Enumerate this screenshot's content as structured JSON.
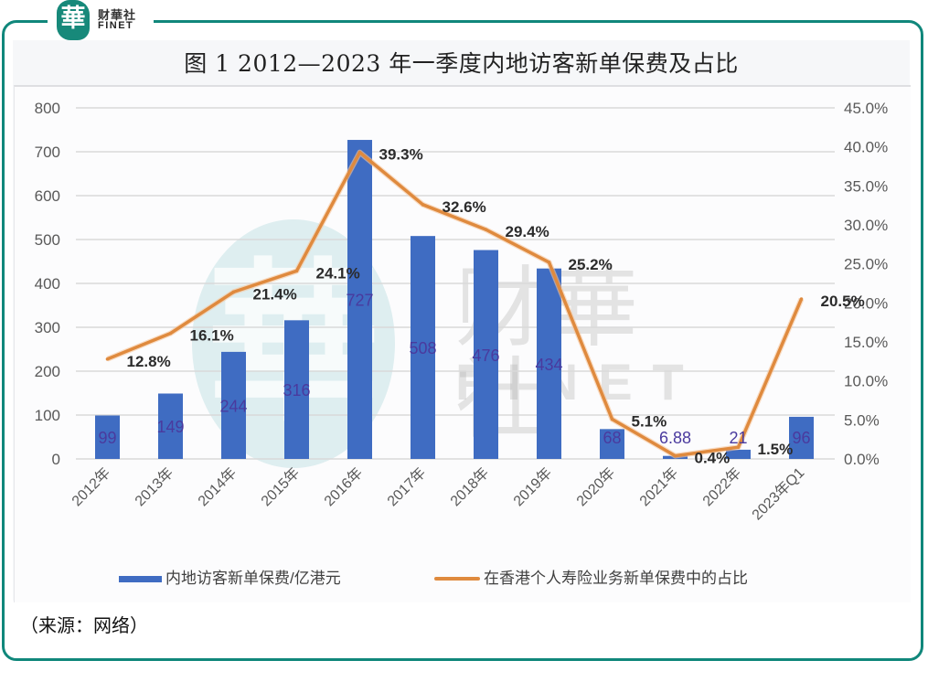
{
  "brand": {
    "logo_glyph": "華",
    "name": "财華社",
    "name_en": "FINET"
  },
  "watermark": {
    "glyph": "華",
    "name": "财華社",
    "name_en": "FINET"
  },
  "source_note": "（来源：网络）",
  "colors": {
    "frame": "#10877b",
    "bar": "#3f6cc2",
    "line": "#df8a3e",
    "bar_label": "#4a3a9e",
    "line_label": "#2b2b2b",
    "axis_text": "#595959",
    "grid": "#d9d9d9"
  },
  "chart_data": {
    "type": "bar",
    "title": "图 1 2012—2023 年一季度内地访客新单保费及占比",
    "xlabel": "",
    "ylabel": "",
    "categories": [
      "2012年",
      "2013年",
      "2014年",
      "2015年",
      "2016年",
      "2017年",
      "2018年",
      "2019年",
      "2020年",
      "2021年",
      "2022年",
      "2023年Q1"
    ],
    "y_left": {
      "min": 0,
      "max": 800,
      "ticks": [
        0,
        100,
        200,
        300,
        400,
        500,
        600,
        700,
        800
      ],
      "tick_labels": [
        "0",
        "100",
        "200",
        "300",
        "400",
        "500",
        "600",
        "700",
        "800"
      ]
    },
    "y_right": {
      "min": 0,
      "max": 45,
      "ticks": [
        0,
        5,
        10,
        15,
        20,
        25,
        30,
        35,
        40,
        45
      ],
      "tick_labels": [
        "0.0%",
        "5.0%",
        "10.0%",
        "15.0%",
        "20.0%",
        "25.0%",
        "30.0%",
        "35.0%",
        "40.0%",
        "45.0%"
      ]
    },
    "grid": true,
    "legend_position": "bottom",
    "series": [
      {
        "name": "内地访客新单保费/亿港元",
        "type": "bar",
        "axis": "left",
        "values": [
          99,
          149,
          244,
          316,
          727,
          508,
          476,
          434,
          68,
          6.88,
          21,
          96
        ],
        "labels": [
          "99",
          "149",
          "244",
          "316",
          "727",
          "508",
          "476",
          "434",
          "68",
          "6.88",
          "21",
          "96"
        ]
      },
      {
        "name": "在香港个人寿险业务新单保费中的占比",
        "type": "line",
        "axis": "right",
        "values": [
          12.8,
          16.1,
          21.4,
          24.1,
          39.3,
          32.6,
          29.4,
          25.2,
          5.1,
          0.4,
          1.5,
          20.5
        ],
        "labels": [
          "12.8%",
          "16.1%",
          "21.4%",
          "24.1%",
          "39.3%",
          "32.6%",
          "29.4%",
          "25.2%",
          "5.1%",
          "0.4%",
          "1.5%",
          "20.5%"
        ]
      }
    ]
  }
}
